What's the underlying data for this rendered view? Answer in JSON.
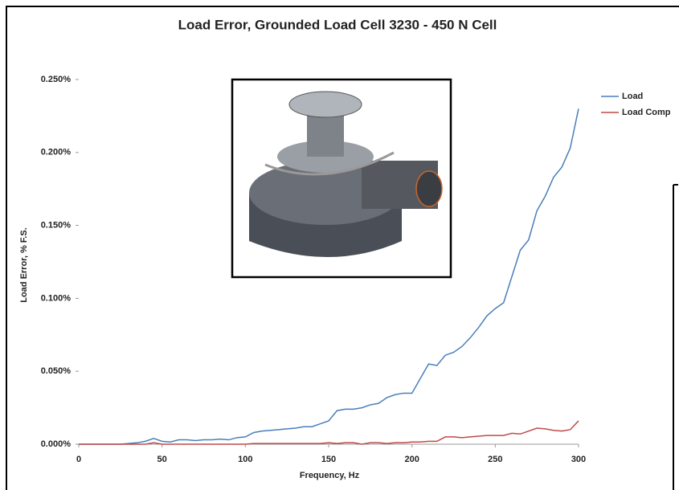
{
  "chart_data": {
    "type": "line",
    "title": "Load Error, Grounded Load Cell 3230 - 450 N Cell",
    "x_label": "Frequency,  Hz",
    "y_label": "Load Error, % F.S.",
    "x": [
      0,
      5,
      10,
      15,
      20,
      25,
      30,
      35,
      40,
      45,
      50,
      55,
      60,
      65,
      70,
      75,
      80,
      85,
      90,
      95,
      100,
      105,
      110,
      115,
      120,
      125,
      130,
      135,
      140,
      145,
      150,
      155,
      160,
      165,
      170,
      175,
      180,
      185,
      190,
      195,
      200,
      205,
      210,
      215,
      220,
      225,
      230,
      235,
      240,
      245,
      250,
      255,
      260,
      265,
      270,
      275,
      280,
      285,
      290,
      295,
      300
    ],
    "series": [
      {
        "name": "Load",
        "color": "#4a7ebb",
        "values": [
          0,
          0,
          0,
          0,
          0,
          0,
          0.0005,
          0.001,
          0.002,
          0.004,
          0.002,
          0.0015,
          0.003,
          0.003,
          0.0025,
          0.003,
          0.003,
          0.0035,
          0.003,
          0.0045,
          0.005,
          0.008,
          0.009,
          0.0095,
          0.01,
          0.0105,
          0.011,
          0.012,
          0.012,
          0.014,
          0.016,
          0.023,
          0.024,
          0.024,
          0.025,
          0.027,
          0.028,
          0.032,
          0.034,
          0.035,
          0.035,
          0.045,
          0.055,
          0.054,
          0.061,
          0.063,
          0.067,
          0.073,
          0.08,
          0.088,
          0.093,
          0.097,
          0.115,
          0.133,
          0.14,
          0.16,
          0.17,
          0.183,
          0.19,
          0.203,
          0.23
        ]
      },
      {
        "name": "Load Comp",
        "color": "#be4b48",
        "values": [
          0,
          0,
          0,
          0,
          0,
          0,
          0,
          0,
          0,
          0.001,
          0,
          0,
          0,
          0,
          0,
          0,
          0,
          0,
          0,
          0,
          0,
          0.0005,
          0.0005,
          0.0005,
          0.0005,
          0.0005,
          0.0005,
          0.0005,
          0.0005,
          0.0005,
          0.001,
          0.0005,
          0.001,
          0.001,
          0,
          0.001,
          0.001,
          0.0005,
          0.001,
          0.001,
          0.0015,
          0.0015,
          0.002,
          0.002,
          0.005,
          0.005,
          0.0045,
          0.005,
          0.0055,
          0.006,
          0.006,
          0.006,
          0.0075,
          0.007,
          0.009,
          0.011,
          0.0105,
          0.0095,
          0.009,
          0.01,
          0.016
        ]
      }
    ],
    "xlim": [
      0,
      300
    ],
    "xticks": [
      0,
      50,
      100,
      150,
      200,
      250,
      300
    ],
    "ylim": [
      0,
      0.25
    ],
    "yticks": [
      {
        "value": 0,
        "label": "0.000%"
      },
      {
        "value": 0.05,
        "label": "0.050%"
      },
      {
        "value": 0.1,
        "label": "0.100%"
      },
      {
        "value": 0.15,
        "label": "0.150%"
      },
      {
        "value": 0.2,
        "label": "0.200%"
      },
      {
        "value": 0.25,
        "label": "0.250%"
      }
    ],
    "grid": false
  }
}
